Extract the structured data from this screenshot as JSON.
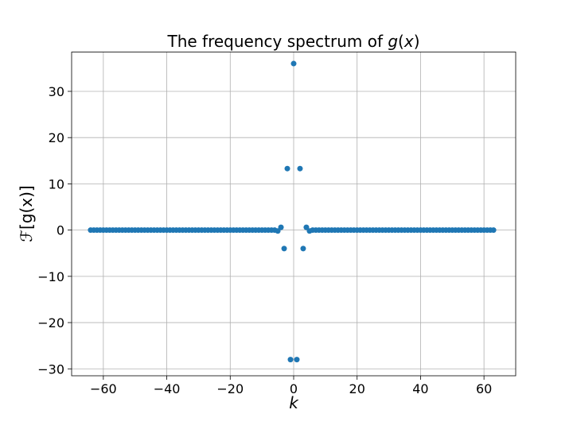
{
  "chart_data": {
    "type": "scatter",
    "title": {
      "prefix": "The frequency spectrum of ",
      "func": "g",
      "arg_open": "(",
      "arg": "x",
      "arg_close": ")"
    },
    "xlabel": "k",
    "ylabel": "ℱ[g(x)]",
    "xlim": [
      -70,
      70
    ],
    "ylim": [
      -31.5,
      38.5
    ],
    "xticks": [
      -60,
      -40,
      -20,
      0,
      20,
      40,
      60
    ],
    "yticks": [
      -30,
      -20,
      -10,
      0,
      10,
      20,
      30
    ],
    "xtick_labels": [
      "−60",
      "−40",
      "−20",
      "0",
      "20",
      "40",
      "60"
    ],
    "ytick_labels": [
      "−30",
      "−20",
      "−10",
      "0",
      "10",
      "20",
      "30"
    ],
    "grid": true,
    "marker_color": "#1f77b4",
    "series": [
      {
        "x": [
          -64,
          -63,
          -62,
          -61,
          -60,
          -59,
          -58,
          -57,
          -56,
          -55,
          -54,
          -53,
          -52,
          -51,
          -50,
          -49,
          -48,
          -47,
          -46,
          -45,
          -44,
          -43,
          -42,
          -41,
          -40,
          -39,
          -38,
          -37,
          -36,
          -35,
          -34,
          -33,
          -32,
          -31,
          -30,
          -29,
          -28,
          -27,
          -26,
          -25,
          -24,
          -23,
          -22,
          -21,
          -20,
          -19,
          -18,
          -17,
          -16,
          -15,
          -14,
          -13,
          -12,
          -11,
          -10,
          -9,
          -8,
          -7,
          -6,
          -5,
          -4,
          -3,
          -2,
          -1,
          0,
          1,
          2,
          3,
          4,
          5,
          6,
          7,
          8,
          9,
          10,
          11,
          12,
          13,
          14,
          15,
          16,
          17,
          18,
          19,
          20,
          21,
          22,
          23,
          24,
          25,
          26,
          27,
          28,
          29,
          30,
          31,
          32,
          33,
          34,
          35,
          36,
          37,
          38,
          39,
          40,
          41,
          42,
          43,
          44,
          45,
          46,
          47,
          48,
          49,
          50,
          51,
          52,
          53,
          54,
          55,
          56,
          57,
          58,
          59,
          60,
          61,
          62,
          63
        ],
        "y": [
          0,
          0,
          0,
          0,
          0,
          0,
          0,
          0,
          0,
          0,
          0,
          0,
          0,
          0,
          0,
          0,
          0,
          0,
          0,
          0,
          0,
          0,
          0,
          0,
          0,
          0,
          0,
          0,
          0,
          0,
          0,
          0,
          0,
          0,
          0,
          0,
          0,
          0,
          0,
          0,
          0,
          0,
          0,
          0,
          0,
          0,
          0,
          0,
          0,
          0,
          0,
          0,
          0,
          0,
          0,
          0,
          0,
          0,
          0,
          -0.2,
          0.6,
          -4.0,
          13.3,
          -28.0,
          36.0,
          -28.0,
          13.3,
          -4.0,
          0.6,
          -0.2,
          0,
          0,
          0,
          0,
          0,
          0,
          0,
          0,
          0,
          0,
          0,
          0,
          0,
          0,
          0,
          0,
          0,
          0,
          0,
          0,
          0,
          0,
          0,
          0,
          0,
          0,
          0,
          0,
          0,
          0,
          0,
          0,
          0,
          0,
          0,
          0,
          0,
          0,
          0,
          0,
          0,
          0,
          0,
          0,
          0,
          0,
          0,
          0,
          0,
          0,
          0,
          0,
          0,
          0,
          0,
          0,
          0,
          0
        ]
      }
    ]
  }
}
